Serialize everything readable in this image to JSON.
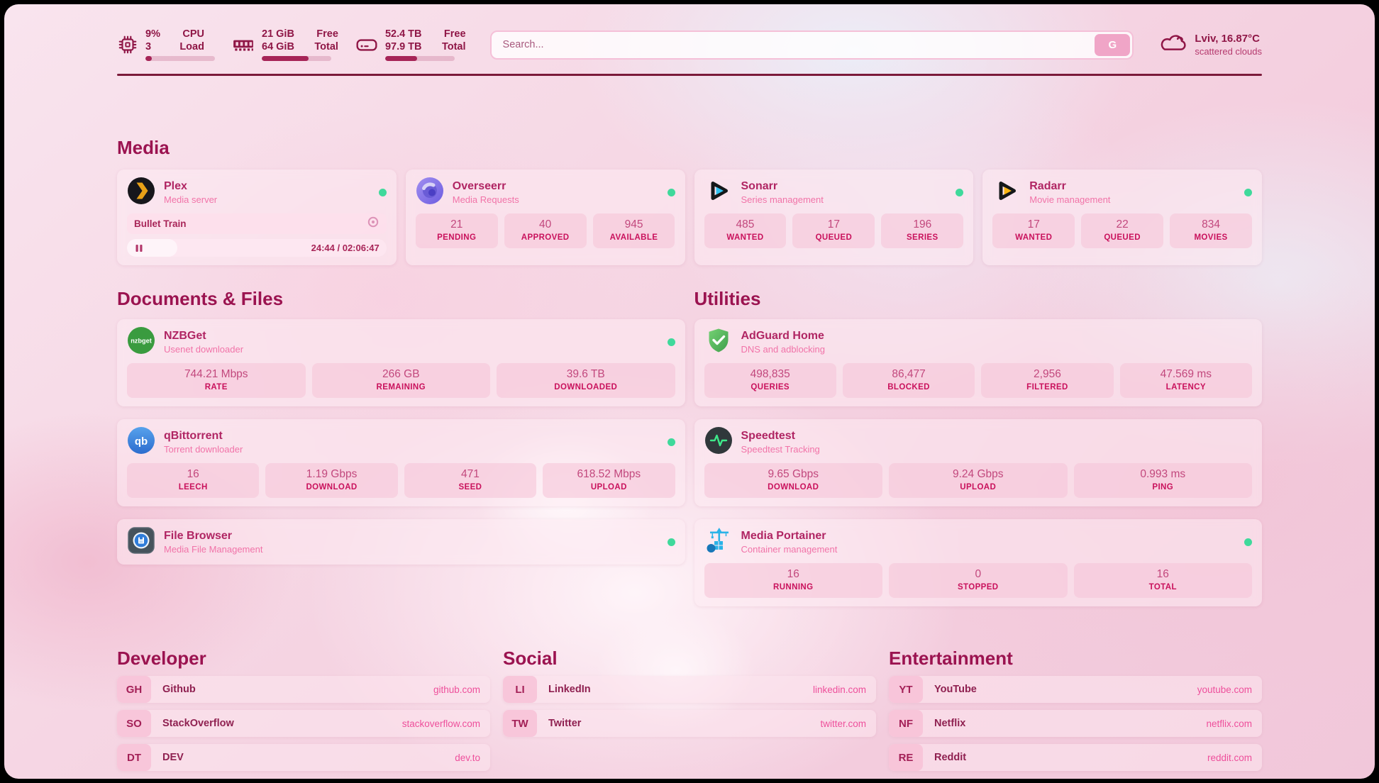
{
  "colors": {
    "accent": "#a62457",
    "status_online": "#3fd99b",
    "divider": "#7b1a3a"
  },
  "header": {
    "cpu": {
      "value_top": "9%",
      "value_bottom": "3",
      "label_top": "CPU",
      "label_bottom": "Load",
      "progress": 9
    },
    "memory": {
      "value_top": "21 GiB",
      "value_bottom": "64 GiB",
      "label_top": "Free",
      "label_bottom": "Total",
      "progress": 67
    },
    "disk": {
      "value_top": "52.4 TB",
      "value_bottom": "97.9 TB",
      "label_top": "Free",
      "label_bottom": "Total",
      "progress": 46
    },
    "search": {
      "placeholder": "Search...",
      "button_label": "G"
    },
    "weather": {
      "location_temp": "Lviv, 16.87°C",
      "condition": "scattered clouds"
    }
  },
  "media": {
    "title": "Media",
    "plex": {
      "name": "Plex",
      "subtitle": "Media server",
      "now_playing": "Bullet Train",
      "time": "24:44 / 02:06:47",
      "progress_percent": 19.5
    },
    "apps": [
      {
        "name": "Overseerr",
        "subtitle": "Media Requests",
        "stats": [
          {
            "value": "21",
            "label": "PENDING"
          },
          {
            "value": "40",
            "label": "APPROVED"
          },
          {
            "value": "945",
            "label": "AVAILABLE"
          }
        ]
      },
      {
        "name": "Sonarr",
        "subtitle": "Series management",
        "stats": [
          {
            "value": "485",
            "label": "WANTED"
          },
          {
            "value": "17",
            "label": "QUEUED"
          },
          {
            "value": "196",
            "label": "SERIES"
          }
        ]
      },
      {
        "name": "Radarr",
        "subtitle": "Movie management",
        "stats": [
          {
            "value": "17",
            "label": "WANTED"
          },
          {
            "value": "22",
            "label": "QUEUED"
          },
          {
            "value": "834",
            "label": "MOVIES"
          }
        ]
      }
    ]
  },
  "documents": {
    "title": "Documents & Files",
    "nzbget": {
      "name": "NZBGet",
      "subtitle": "Usenet downloader",
      "stats": [
        {
          "value": "744.21 Mbps",
          "label": "RATE"
        },
        {
          "value": "266 GB",
          "label": "REMAINING"
        },
        {
          "value": "39.6 TB",
          "label": "DOWNLOADED"
        }
      ]
    },
    "qbittorrent": {
      "name": "qBittorrent",
      "subtitle": "Torrent downloader",
      "stats": [
        {
          "value": "16",
          "label": "LEECH"
        },
        {
          "value": "1.19 Gbps",
          "label": "DOWNLOAD"
        },
        {
          "value": "471",
          "label": "SEED"
        },
        {
          "value": "618.52 Mbps",
          "label": "UPLOAD"
        }
      ]
    },
    "filebrowser": {
      "name": "File Browser",
      "subtitle": "Media File Management"
    }
  },
  "utilities": {
    "title": "Utilities",
    "adguard": {
      "name": "AdGuard Home",
      "subtitle": "DNS and adblocking",
      "stats": [
        {
          "value": "498,835",
          "label": "QUERIES"
        },
        {
          "value": "86,477",
          "label": "BLOCKED"
        },
        {
          "value": "2,956",
          "label": "FILTERED"
        },
        {
          "value": "47.569 ms",
          "label": "LATENCY"
        }
      ]
    },
    "speedtest": {
      "name": "Speedtest",
      "subtitle": "Speedtest Tracking",
      "stats": [
        {
          "value": "9.65 Gbps",
          "label": "DOWNLOAD"
        },
        {
          "value": "9.24 Gbps",
          "label": "UPLOAD"
        },
        {
          "value": "0.993 ms",
          "label": "PING"
        }
      ]
    },
    "portainer": {
      "name": "Media Portainer",
      "subtitle": "Container management",
      "stats": [
        {
          "value": "16",
          "label": "RUNNING"
        },
        {
          "value": "0",
          "label": "STOPPED"
        },
        {
          "value": "16",
          "label": "TOTAL"
        }
      ]
    }
  },
  "bookmarks": {
    "developer": {
      "title": "Developer",
      "items": [
        {
          "abbr": "GH",
          "name": "Github",
          "url": "github.com"
        },
        {
          "abbr": "SO",
          "name": "StackOverflow",
          "url": "stackoverflow.com"
        },
        {
          "abbr": "DT",
          "name": "DEV",
          "url": "dev.to"
        }
      ]
    },
    "social": {
      "title": "Social",
      "items": [
        {
          "abbr": "LI",
          "name": "LinkedIn",
          "url": "linkedin.com"
        },
        {
          "abbr": "TW",
          "name": "Twitter",
          "url": "twitter.com"
        }
      ]
    },
    "entertainment": {
      "title": "Entertainment",
      "items": [
        {
          "abbr": "YT",
          "name": "YouTube",
          "url": "youtube.com"
        },
        {
          "abbr": "NF",
          "name": "Netflix",
          "url": "netflix.com"
        },
        {
          "abbr": "RE",
          "name": "Reddit",
          "url": "reddit.com"
        }
      ]
    }
  }
}
